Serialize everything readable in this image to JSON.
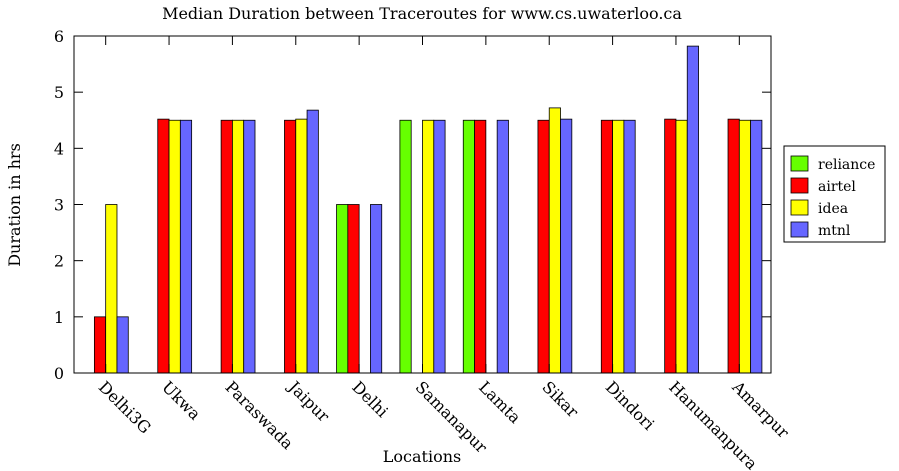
{
  "chart_data": {
    "type": "bar",
    "title": "Median Duration between Traceroutes for www.cs.uwaterloo.ca",
    "xlabel": "Locations",
    "ylabel": "Duration in hrs",
    "ylim": [
      0,
      6
    ],
    "yticks": [
      "0",
      "1",
      "2",
      "3",
      "4",
      "5",
      "6"
    ],
    "grid": false,
    "legend_position": "right",
    "categories": [
      "Delhi3G",
      "Ukwa",
      "Paraswada",
      "Jaipur",
      "Delhi",
      "Samanapur",
      "Lamta",
      "Sikar",
      "Dindori",
      "Hanumanpura",
      "Amarpur"
    ],
    "series": [
      {
        "name": "reliance",
        "color": "#66ff00",
        "values": [
          null,
          null,
          null,
          null,
          3.0,
          4.5,
          4.5,
          null,
          null,
          null,
          null
        ]
      },
      {
        "name": "airtel",
        "color": "#ff0000",
        "values": [
          1.0,
          4.52,
          4.5,
          4.5,
          3.0,
          null,
          4.5,
          4.5,
          4.5,
          4.52,
          4.52
        ]
      },
      {
        "name": "idea",
        "color": "#ffff00",
        "values": [
          3.0,
          4.5,
          4.5,
          4.52,
          null,
          4.5,
          null,
          4.72,
          4.5,
          4.5,
          4.5
        ]
      },
      {
        "name": "mtnl",
        "color": "#6666ff",
        "values": [
          1.0,
          4.5,
          4.5,
          4.68,
          3.0,
          4.5,
          4.5,
          4.52,
          4.5,
          5.82,
          4.5
        ]
      }
    ]
  }
}
